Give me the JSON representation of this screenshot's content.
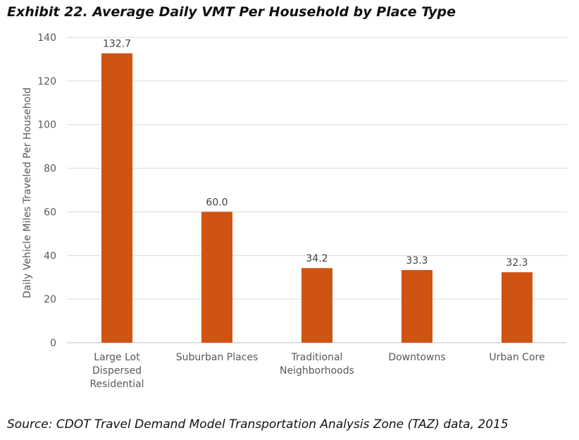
{
  "chart_data": {
    "type": "bar",
    "title": "Exhibit 22. Average Daily VMT Per Household by Place Type",
    "source": "Source: CDOT Travel Demand Model Transportation Analysis Zone (TAZ) data, 2015",
    "categories": [
      [
        "Large Lot",
        "Dispersed",
        "Residential"
      ],
      [
        "Suburban Places"
      ],
      [
        "Traditional",
        "Neighborhoods"
      ],
      [
        "Downtowns"
      ],
      [
        "Urban Core"
      ]
    ],
    "values": [
      132.7,
      60.0,
      34.2,
      33.3,
      32.3
    ],
    "data_labels": [
      "132.7",
      "60.0",
      "34.2",
      "33.3",
      "32.3"
    ],
    "xlabel": "",
    "ylabel": "Daily Vehicle Miles Traveled Per Household",
    "ylim": [
      0,
      140
    ],
    "yticks": [
      0,
      20,
      40,
      60,
      80,
      100,
      120,
      140
    ],
    "grid": true,
    "bar_color": "#CF5313"
  }
}
